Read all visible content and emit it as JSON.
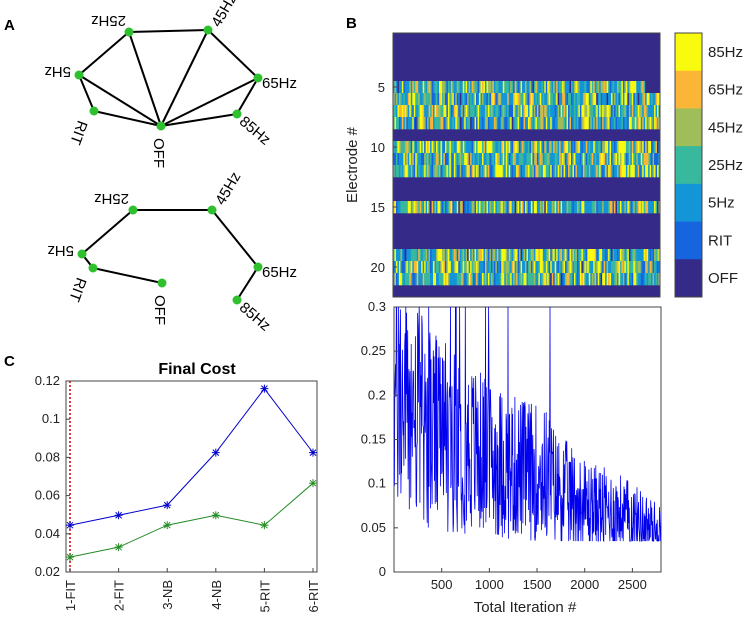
{
  "panels": {
    "a": "A",
    "b": "B",
    "c": "C"
  },
  "graph_a": {
    "nodes": [
      {
        "id": "25Hz",
        "label": "25Hz",
        "rot": 180
      },
      {
        "id": "45Hz",
        "label": "45Hz",
        "rot": -60
      },
      {
        "id": "5Hz",
        "label": "5Hz",
        "rot": 180
      },
      {
        "id": "65Hz",
        "label": "65Hz",
        "rot": 0
      },
      {
        "id": "RIT",
        "label": "RIT",
        "rot": 110
      },
      {
        "id": "85Hz",
        "label": "85Hz",
        "rot": 40
      },
      {
        "id": "OFF",
        "label": "OFF",
        "rot": 90
      }
    ],
    "edges": [
      [
        "5Hz",
        "25Hz"
      ],
      [
        "5Hz",
        "OFF"
      ],
      [
        "5Hz",
        "RIT"
      ],
      [
        "25Hz",
        "OFF"
      ],
      [
        "25Hz",
        "45Hz"
      ],
      [
        "45Hz",
        "OFF"
      ],
      [
        "45Hz",
        "65Hz"
      ],
      [
        "65Hz",
        "OFF"
      ],
      [
        "65Hz",
        "85Hz"
      ],
      [
        "85Hz",
        "OFF"
      ],
      [
        "RIT",
        "OFF"
      ]
    ]
  },
  "graph_a2": {
    "edges": [
      [
        "RIT",
        "5Hz"
      ],
      [
        "5Hz",
        "25Hz"
      ],
      [
        "25Hz",
        "45Hz"
      ],
      [
        "45Hz",
        "65Hz"
      ],
      [
        "65Hz",
        "85Hz"
      ],
      [
        "RIT",
        "OFF"
      ]
    ]
  },
  "chart_data": [
    {
      "type": "line",
      "title": "Final Cost",
      "categories": [
        "1-FIT",
        "2-FIT",
        "3-NB",
        "4-NB",
        "5-RIT",
        "6-RIT"
      ],
      "series": [
        {
          "values": [
            0.0445,
            0.0497,
            0.055,
            0.0825,
            0.116,
            0.0825
          ],
          "color": "#0000cc"
        },
        {
          "values": [
            0.0278,
            0.033,
            0.0445,
            0.0497,
            0.0445,
            0.0665
          ],
          "color": "#238b23"
        }
      ],
      "ylim": [
        0.02,
        0.12
      ],
      "yticks": [
        "0.02",
        "0.04",
        "0.06",
        "0.08",
        "0.1",
        "0.12"
      ],
      "marker_line_at": "1-FIT"
    },
    {
      "type": "heatmap",
      "ylabel": "Electrode #",
      "yticks": [
        "5",
        "10",
        "15",
        "20"
      ],
      "rows": 22,
      "blank_rows": [
        1,
        2,
        3,
        4,
        9,
        13,
        14,
        16,
        17,
        18,
        22
      ],
      "colorbar": [
        "85Hz",
        "65Hz",
        "45Hz",
        "25Hz",
        "5Hz",
        "RIT",
        "OFF"
      ],
      "colors": [
        "#f9fb0e",
        "#fbb537",
        "#9fbe5a",
        "#38b99e",
        "#1396d8",
        "#1665df",
        "#352a87"
      ]
    },
    {
      "type": "line",
      "xlabel": "Total Iteration #",
      "xlim": [
        0,
        2800
      ],
      "xticks": [
        "500",
        "1000",
        "1500",
        "2000",
        "2500"
      ],
      "ylim": [
        0,
        0.3
      ],
      "yticks": [
        "0",
        "0.05",
        "0.1",
        "0.15",
        "0.2",
        "0.25",
        "0.3"
      ],
      "color": "#0000ee",
      "trend": [
        [
          0,
          0.2
        ],
        [
          400,
          0.16
        ],
        [
          800,
          0.14
        ],
        [
          1200,
          0.12
        ],
        [
          1600,
          0.11
        ],
        [
          1700,
          0.095
        ],
        [
          2000,
          0.075
        ],
        [
          2400,
          0.065
        ],
        [
          2800,
          0.045
        ]
      ]
    }
  ]
}
